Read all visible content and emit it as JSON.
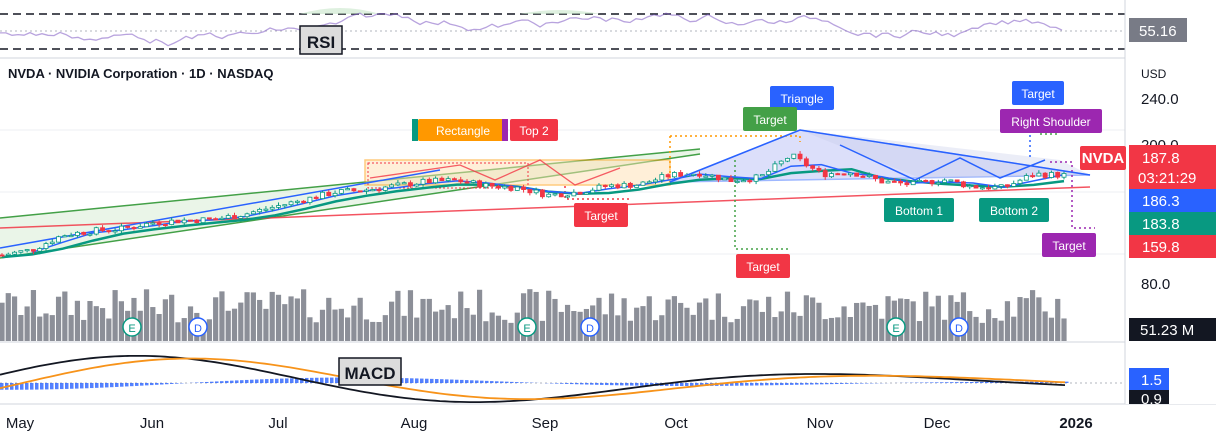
{
  "header": {
    "symbol_title": "NVDA · NVIDIA Corporation · 1D · NASDAQ",
    "currency": "USD"
  },
  "chart_data": {
    "type": "candlestick",
    "symbol": "NVDA",
    "price_axis": {
      "ticks": [
        "240.0",
        "200.0",
        "80.0"
      ]
    },
    "time_axis": {
      "ticks": [
        "May",
        "Jun",
        "Jul",
        "Aug",
        "Sep",
        "Oct",
        "Nov",
        "Dec",
        "2026"
      ]
    },
    "price_tags": [
      {
        "text": "187.8",
        "color": "#f23645"
      },
      {
        "text": "03:21:29",
        "color": "#f23645"
      },
      {
        "text": "186.3",
        "color": "#2962ff"
      },
      {
        "text": "183.8",
        "color": "#089981"
      },
      {
        "text": "159.8",
        "color": "#f23645"
      }
    ],
    "symbol_tag": "NVDA",
    "close_series": {
      "dates": [
        "Apr 28",
        "May 5",
        "May 12",
        "May 19",
        "May 26",
        "Jun 2",
        "Jun 9",
        "Jun 16",
        "Jun 23",
        "Jun 30",
        "Jul 7",
        "Jul 14",
        "Jul 21",
        "Jul 28",
        "Aug 4",
        "Aug 11",
        "Aug 18",
        "Aug 25",
        "Sep 1",
        "Sep 8",
        "Sep 15",
        "Sep 22",
        "Sep 29",
        "Oct 6",
        "Oct 13",
        "Oct 20",
        "Oct 27",
        "Nov 3",
        "Nov 10",
        "Nov 17",
        "Nov 24",
        "Dec 1",
        "Dec 8",
        "Dec 15",
        "Dec 22",
        "Dec 29"
      ],
      "close": [
        111,
        116,
        130,
        134,
        136,
        142,
        144,
        145,
        150,
        157,
        164,
        171,
        173,
        177,
        181,
        182,
        177,
        175,
        168,
        171,
        177,
        178,
        187,
        189,
        182,
        185,
        206,
        188,
        190,
        181,
        178,
        183,
        176,
        175,
        188,
        187
      ]
    },
    "patterns": [
      {
        "label": "Rectangle",
        "color": "#ff9800"
      },
      {
        "label": "Top 2",
        "color": "#f23645"
      },
      {
        "label": "Triangle",
        "color": "#2962ff"
      },
      {
        "label": "Target",
        "color": "#089981"
      },
      {
        "label": "Target",
        "color": "#2962ff"
      },
      {
        "label": "Right Shoulder",
        "color": "#9c27b0"
      },
      {
        "label": "Target",
        "color": "#f23645"
      },
      {
        "label": "Target",
        "color": "#f23645"
      },
      {
        "label": "Bottom 1",
        "color": "#089981"
      },
      {
        "label": "Bottom 2",
        "color": "#089981"
      },
      {
        "label": "Target",
        "color": "#9c27b0"
      }
    ],
    "volume": {
      "last": "51.23 M"
    },
    "earnings_markers": [
      "E",
      "E",
      "E"
    ],
    "dividend_markers": [
      "D",
      "D",
      "D"
    ],
    "rsi": {
      "label": "RSI",
      "value": "55.16"
    },
    "macd": {
      "label": "MACD",
      "value": "1.5",
      "value2": "0.9"
    }
  }
}
